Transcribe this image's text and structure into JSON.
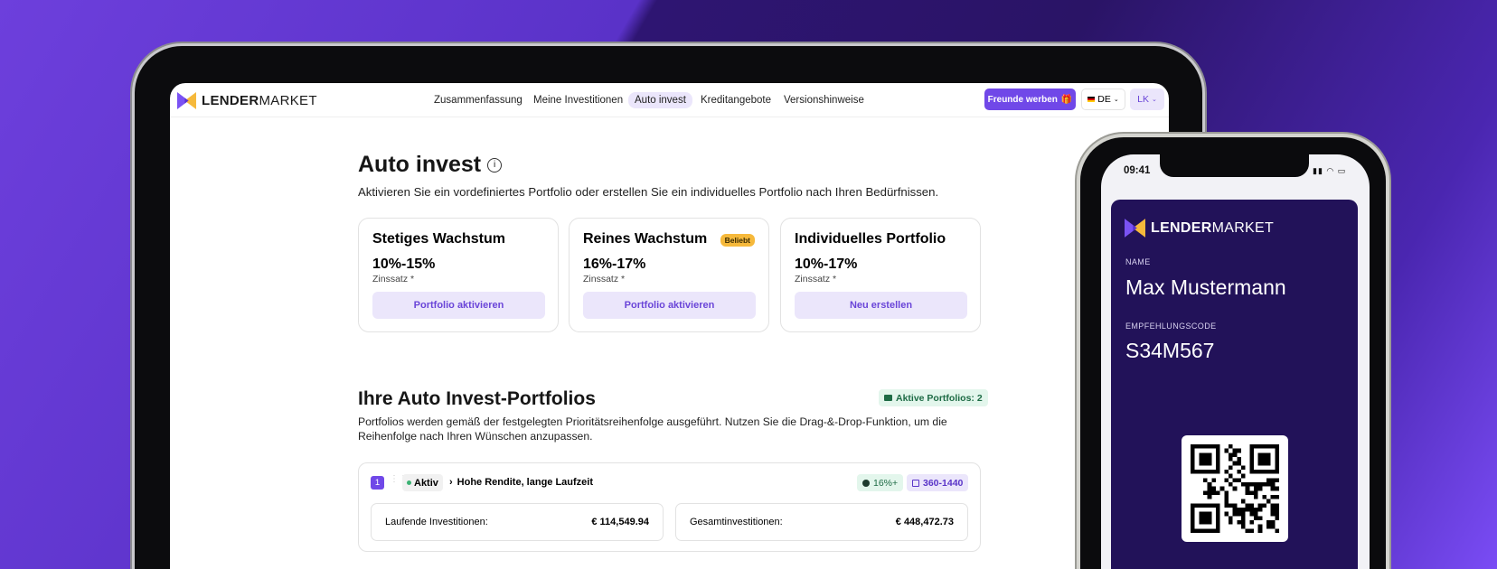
{
  "brand": {
    "name_bold": "LENDER",
    "name_light": "MARKET",
    "colors": {
      "accent": "#7048e8",
      "logo_purple": "#7a52f4",
      "logo_yellow": "#f6b93b",
      "wallet_bg": "#221259"
    }
  },
  "nav": {
    "items": [
      {
        "label": "Zusammenfassung"
      },
      {
        "label": "Meine Investitionen"
      },
      {
        "label": "Auto invest",
        "active": true
      },
      {
        "label": "Kreditangebote"
      },
      {
        "label": "Versionshinweise"
      }
    ],
    "refer_button": "Freunde werben",
    "language": "DE",
    "user_initials": "LK"
  },
  "page": {
    "title": "Auto invest",
    "subtitle": "Aktivieren Sie ein vordefiniertes Portfolio oder erstellen Sie ein individuelles Portfolio nach Ihren Bedürfnissen.",
    "cards": [
      {
        "title": "Stetiges Wachstum",
        "rate": "10%-15%",
        "rate_label": "Zinssatz *",
        "button": "Portfolio aktivieren"
      },
      {
        "title": "Reines Wachstum",
        "badge": "Beliebt",
        "rate": "16%-17%",
        "rate_label": "Zinssatz *",
        "button": "Portfolio aktivieren"
      },
      {
        "title": "Individuelles Portfolio",
        "rate": "10%-17%",
        "rate_label": "Zinssatz *",
        "button": "Neu erstellen"
      }
    ],
    "portfolios": {
      "title": "Ihre Auto Invest-Portfolios",
      "active_badge": "Aktive Portfolios: 2",
      "desc_line1": "Portfolios werden gemäß der festgelegten Prioritätsreihenfolge ausgeführt. Nutzen Sie die Drag-&-Drop-Funktion, um die",
      "desc_line2": "Reihenfolge nach Ihren Wünschen anzupassen.",
      "items": [
        {
          "priority": "1",
          "status": "Aktiv",
          "name": "Hohe Rendite, lange Laufzeit",
          "rate": "16%+",
          "term": "360-1440",
          "current_label": "Laufende Investitionen:",
          "current_value": "€ 114,549.94",
          "total_label": "Gesamtinvestitionen:",
          "total_value": "€ 448,472.73"
        }
      ]
    }
  },
  "phone": {
    "time": "09:41",
    "name_label": "NAME",
    "name": "Max Mustermann",
    "code_label": "EMPFEHLUNGSCODE",
    "code": "S34M567"
  }
}
